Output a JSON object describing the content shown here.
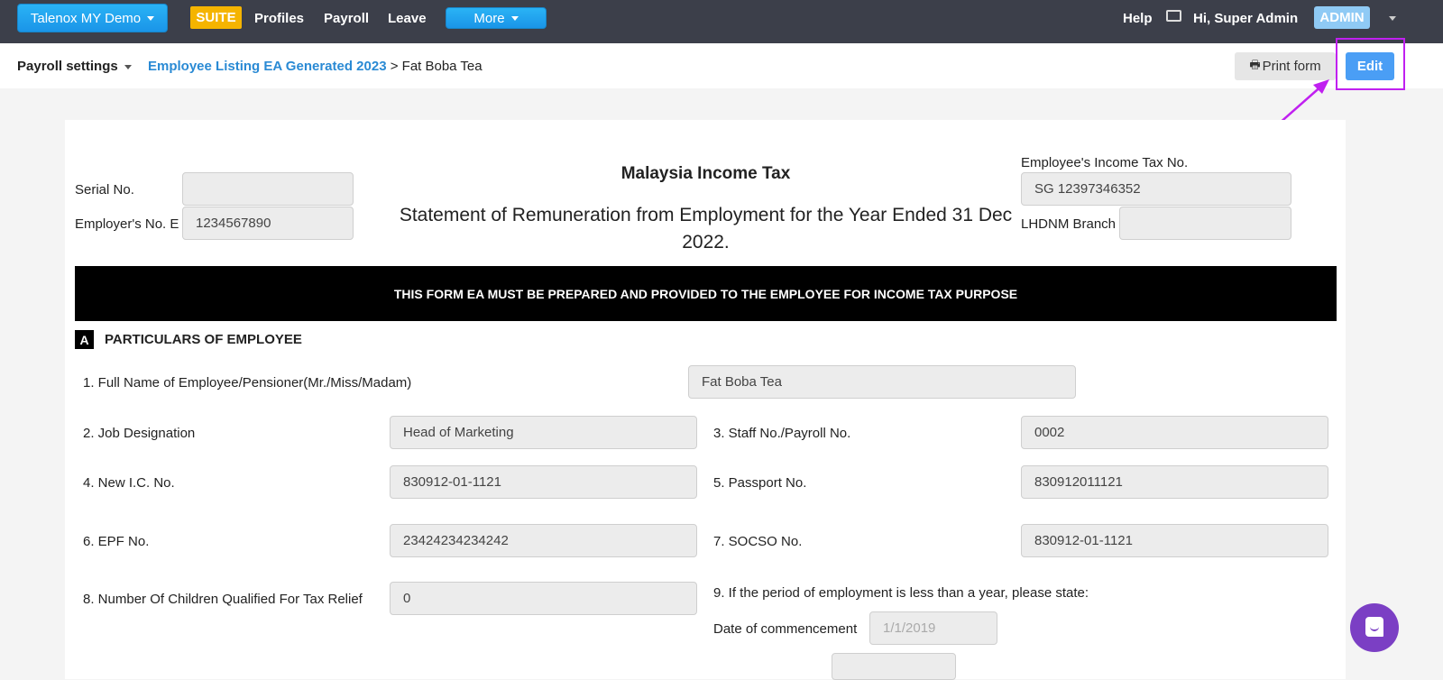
{
  "nav": {
    "company": "Talenox MY Demo",
    "suite": "SUITE",
    "links": [
      "Profiles",
      "Payroll",
      "Leave"
    ],
    "more": "More",
    "help": "Help",
    "greeting": "Hi, Super Admin",
    "role": "ADMIN"
  },
  "breadcrumb": {
    "settings": "Payroll settings",
    "listing": "Employee Listing EA Generated 2023",
    "separator": ">",
    "current": "Fat Boba Tea"
  },
  "actions": {
    "print": "Print form",
    "edit": "Edit"
  },
  "form": {
    "title": "Malaysia Income Tax",
    "subtitle": "Statement of Remuneration from Employment for the Year Ended 31 Dec 2022.",
    "serial_label": "Serial No.",
    "serial_value": "",
    "employer_label": "Employer's No. E",
    "employer_value": "1234567890",
    "tax_no_label": "Employee's Income Tax No.",
    "tax_no_value": "SG 12397346352",
    "branch_label": "LHDNM Branch",
    "branch_value": "",
    "banner": "THIS FORM EA MUST BE PREPARED AND PROVIDED TO THE EMPLOYEE FOR INCOME TAX PURPOSE",
    "section_letter": "A",
    "section_title": "PARTICULARS OF EMPLOYEE",
    "fields": {
      "name_label": "1. Full Name of Employee/Pensioner(Mr./Miss/Madam)",
      "name": "Fat Boba Tea",
      "job_label": "2. Job Designation",
      "job": "Head of Marketing",
      "staff_label": "3. Staff No./Payroll No.",
      "staff": "0002",
      "ic_label": "4. New I.C. No.",
      "ic": "830912-01-1121",
      "passport_label": "5. Passport No.",
      "passport": "830912011121",
      "epf_label": "6. EPF No.",
      "epf": "23424234234242",
      "socso_label": "7. SOCSO No.",
      "socso": "830912-01-1121",
      "children_label": "8. Number Of Children Qualified For Tax Relief",
      "children": "0",
      "period_label": "9. If the period of employment is less than a year, please state:",
      "commence_label": "Date of commencement",
      "commence": "1/1/2019"
    }
  },
  "colors": {
    "nav": "#3c3f4a",
    "suite": "#f5b400",
    "link": "#2a8ad4",
    "edit": "#4a9ef5",
    "annotation": "#c020f0",
    "chat": "#7b3fc4"
  }
}
